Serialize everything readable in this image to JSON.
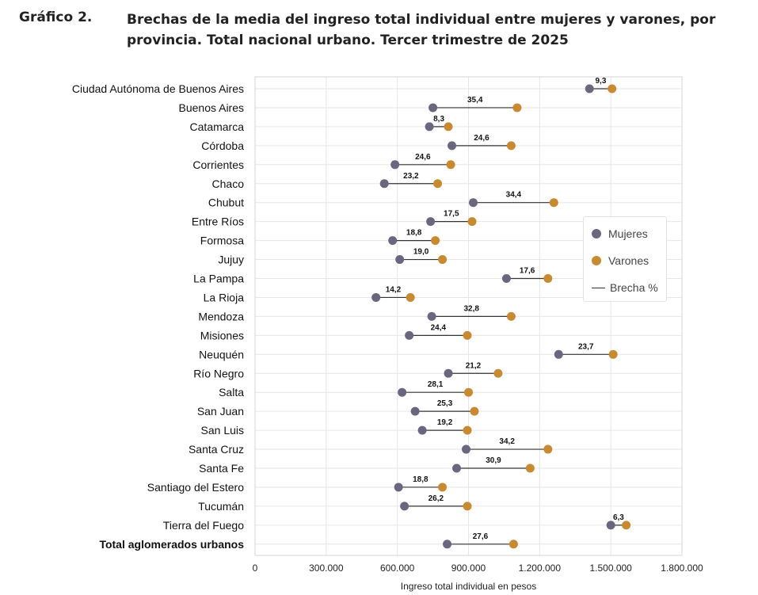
{
  "header": {
    "figure_label": "Gráfico 2.",
    "title": "Brechas de la media del ingreso total individual entre mujeres y varones, por provincia. Total nacional urbano. Tercer trimestre de 2025"
  },
  "legend": {
    "mujeres": "Mujeres",
    "varones": "Varones",
    "brecha": "Brecha %"
  },
  "colors": {
    "mujeres": "#6b6680",
    "varones": "#c98a2f",
    "line": "#333333",
    "grid": "#e6e6e6"
  },
  "chart_data": {
    "type": "dumbbell",
    "title": "Brechas de la media del ingreso total individual entre mujeres y varones, por provincia. Total nacional urbano. Tercer trimestre de 2025",
    "xlabel": "Ingreso total individual en pesos",
    "ylabel": "",
    "xlim": [
      0,
      1800000
    ],
    "xticks": [
      0,
      300000,
      600000,
      900000,
      1200000,
      1500000,
      1800000
    ],
    "xtick_labels": [
      "0",
      "300.000",
      "600.000",
      "900.000",
      "1.200.000",
      "1.500.000",
      "1.800.000"
    ],
    "grid": true,
    "legend_position": "right",
    "categories": [
      "Ciudad Autónoma de Buenos Aires",
      "Buenos Aires",
      "Catamarca",
      "Córdoba",
      "Corrientes",
      "Chaco",
      "Chubut",
      "Entre Ríos",
      "Formosa",
      "Jujuy",
      "La Pampa",
      "La Rioja",
      "Mendoza",
      "Misiones",
      "Neuquén",
      "Río Negro",
      "Salta",
      "San Juan",
      "San Luis",
      "Santa Cruz",
      "Santa Fe",
      "Santiago del Estero",
      "Tucumán",
      "Tierra del Fuego",
      "Total aglomerados urbanos"
    ],
    "bold_categories": [
      "Total aglomerados urbanos"
    ],
    "series": [
      {
        "name": "Mujeres",
        "values": [
          1410000,
          750000,
          735000,
          830000,
          590000,
          545000,
          920000,
          740000,
          580000,
          610000,
          1060000,
          510000,
          745000,
          650000,
          1280000,
          815000,
          620000,
          675000,
          705000,
          890000,
          850000,
          605000,
          630000,
          1500000,
          810000
        ]
      },
      {
        "name": "Varones",
        "values": [
          1505000,
          1105000,
          815000,
          1080000,
          825000,
          770000,
          1260000,
          915000,
          760000,
          790000,
          1235000,
          655000,
          1080000,
          895000,
          1510000,
          1025000,
          900000,
          925000,
          895000,
          1235000,
          1160000,
          790000,
          895000,
          1565000,
          1090000
        ]
      }
    ],
    "gap_labels": [
      "9,3",
      "35,4",
      "8,3",
      "24,6",
      "24,6",
      "23,2",
      "34,4",
      "17,5",
      "18,8",
      "19,0",
      "17,6",
      "14,2",
      "32,8",
      "24,4",
      "23,7",
      "21,2",
      "28,1",
      "25,3",
      "19,2",
      "34,2",
      "30,9",
      "18,8",
      "26,2",
      "6,3",
      "27,6"
    ]
  }
}
